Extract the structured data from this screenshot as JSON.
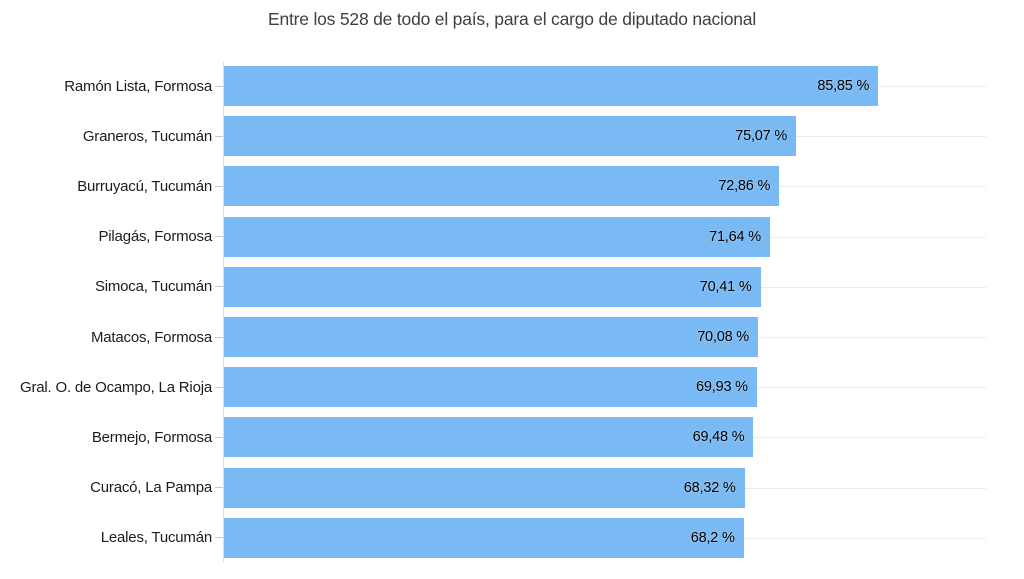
{
  "chart_data": {
    "type": "bar",
    "orientation": "horizontal",
    "title": "Entre los 528 de todo el país, para el cargo de diputado nacional",
    "categories": [
      "Ramón Lista, Formosa",
      "Graneros, Tucumán",
      "Burruyacú, Tucumán",
      "Pilagás, Formosa",
      "Simoca, Tucumán",
      "Matacos, Formosa",
      "Gral. O. de Ocampo, La Rioja",
      "Bermejo, Formosa",
      "Curacó, La Pampa",
      "Leales, Tucumán"
    ],
    "values": [
      85.85,
      75.07,
      72.86,
      71.64,
      70.41,
      70.08,
      69.93,
      69.48,
      68.32,
      68.2
    ],
    "value_labels": [
      "85,85 %",
      "75,07 %",
      "72,86 %",
      "71,64 %",
      "70,41 %",
      "70,08 %",
      "69,93 %",
      "69,48 %",
      "68,32 %",
      "68,2 %"
    ],
    "xlabel": "",
    "ylabel": "",
    "xlim": [
      0,
      100
    ],
    "grid": true,
    "legend": "none",
    "value_format": "decimal-comma, suffix ' %'"
  },
  "colors": {
    "bar": "#7abaf4",
    "gridline": "#ebebeb",
    "axis_line": "#dedede",
    "tick": "#c8c8c8",
    "title_text": "#3f3f3f",
    "category_text": "#1c1c1c",
    "value_text": "#000000"
  }
}
